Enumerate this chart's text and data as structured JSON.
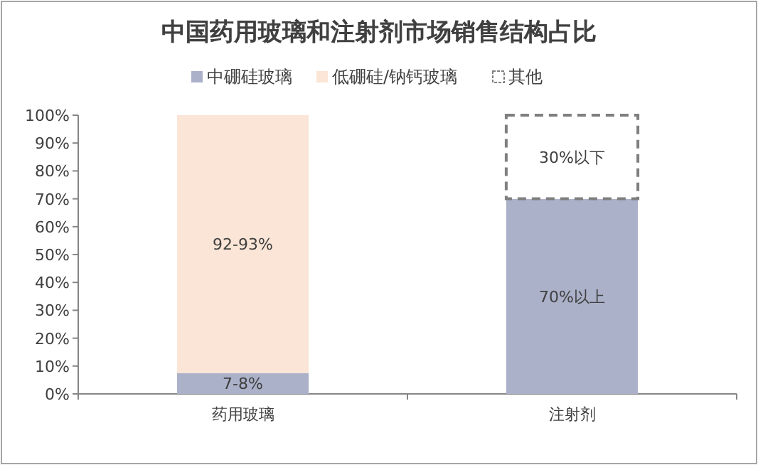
{
  "chart_data": {
    "type": "bar",
    "title": "中国药用玻璃和注射剂市场销售结构占比",
    "categories": [
      "药用玻璃",
      "注射剂"
    ],
    "stacked": true,
    "legend": "top",
    "grid": false,
    "series": [
      {
        "name": "中硼硅玻璃",
        "color": "#abb1c9",
        "values": [
          7.5,
          70
        ],
        "value_labels": [
          "7-8%",
          "70%以上"
        ]
      },
      {
        "name": "低硼硅/钠钙玻璃",
        "color": "#fbe5d6",
        "values": [
          92.5,
          null
        ],
        "value_labels": [
          "92-93%",
          null
        ]
      },
      {
        "name": "其他",
        "color": "#ffffff",
        "line_style": "dashed",
        "values": [
          null,
          30
        ],
        "value_labels": [
          null,
          "30%以下"
        ]
      }
    ],
    "ylim": [
      0,
      100
    ],
    "yticks": [
      {
        "value": 0,
        "label": "0%"
      },
      {
        "value": 10,
        "label": "10%"
      },
      {
        "value": 20,
        "label": "20%"
      },
      {
        "value": 30,
        "label": "30%"
      },
      {
        "value": 40,
        "label": "40%"
      },
      {
        "value": 50,
        "label": "50%"
      },
      {
        "value": 60,
        "label": "60%"
      },
      {
        "value": 70,
        "label": "70%"
      },
      {
        "value": 80,
        "label": "80%"
      },
      {
        "value": 90,
        "label": "90%"
      },
      {
        "value": 100,
        "label": "100%"
      }
    ]
  }
}
